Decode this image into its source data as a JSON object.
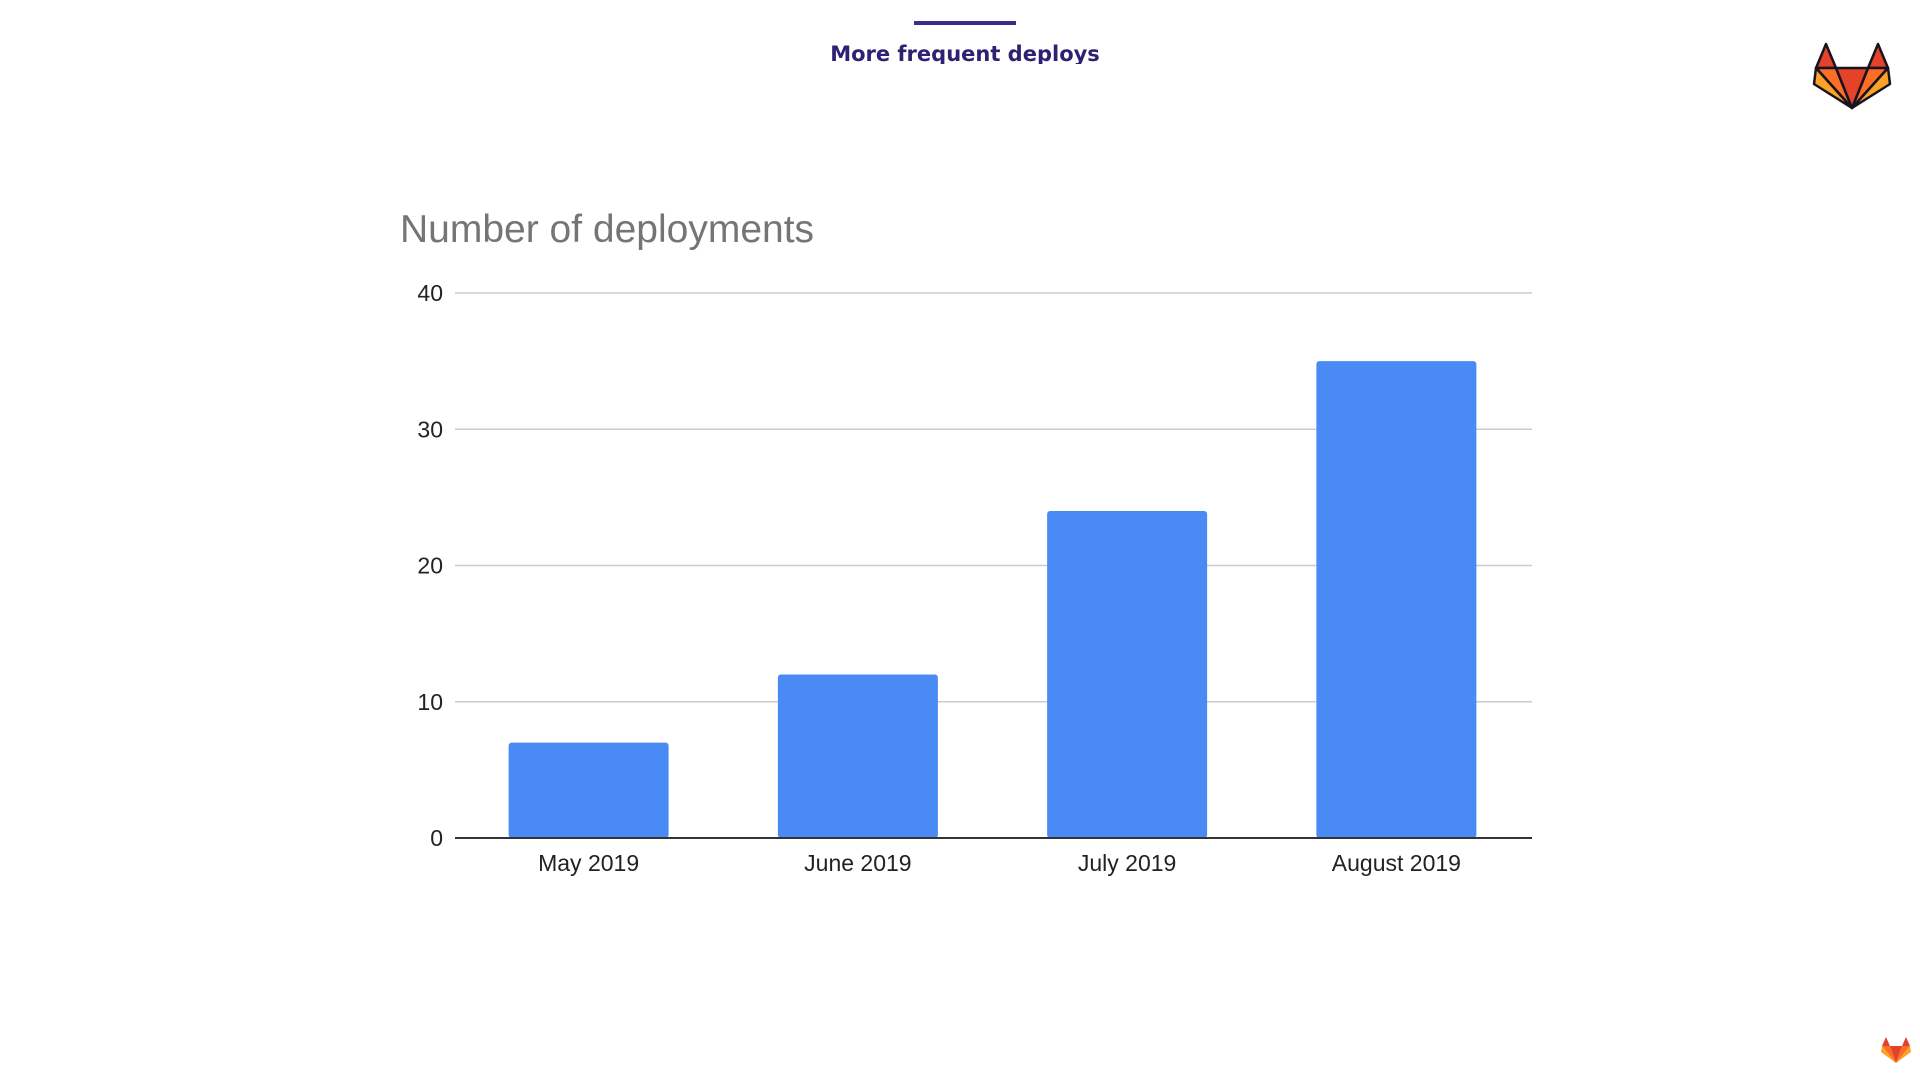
{
  "header": {
    "title": "More frequent deploys"
  },
  "colors": {
    "accent": "#3d2b8f",
    "bar": "#4a8af4",
    "gridline": "#cccccc",
    "axis": "#333333"
  },
  "icons": {
    "brand_logo": "fox-logo-icon",
    "footer_logo": "fox-logo-small-icon"
  },
  "chart_data": {
    "type": "bar",
    "title": "Number of deployments",
    "xlabel": "",
    "ylabel": "",
    "categories": [
      "May 2019",
      "June 2019",
      "July 2019",
      "August 2019"
    ],
    "values": [
      7,
      12,
      24,
      35
    ],
    "ylim": [
      0,
      40
    ],
    "yticks": [
      0,
      10,
      20,
      30,
      40
    ],
    "grid": true,
    "legend": "none"
  }
}
